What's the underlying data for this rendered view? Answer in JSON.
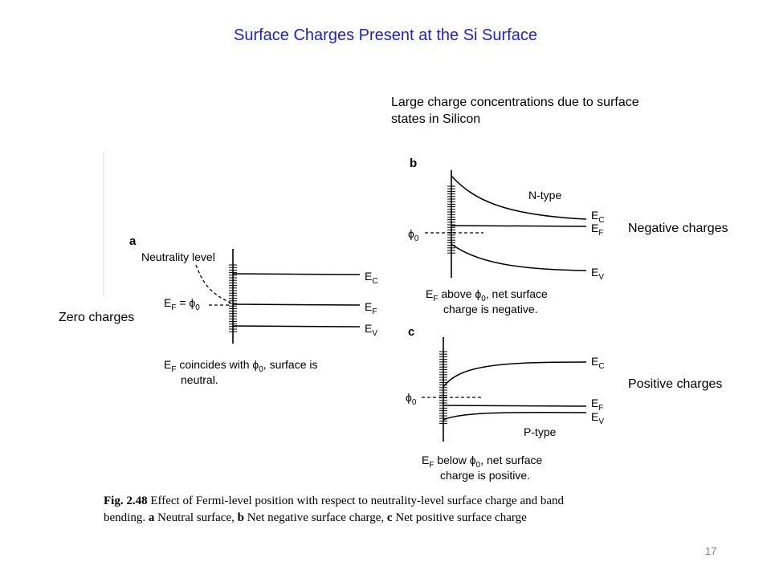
{
  "slide": {
    "title": "Surface Charges Present at the Si Surface",
    "note_top_line1": "Large charge concentrations due to surface",
    "note_top_line2": "states in Silicon",
    "label_zero": "Zero charges",
    "label_negative": "Negative charges",
    "label_positive": "Positive charges",
    "page_number": "17"
  },
  "figure": {
    "panel_a": {
      "letter": "a",
      "neutrality_label": "Neutrality level",
      "ef_symbol": "E",
      "ef_sub": "F",
      "equals_phi": " = ϕ",
      "phi_sub": "0",
      "band_ec": "E",
      "band_ec_sub": "C",
      "band_ef": "E",
      "band_ef_sub": "F",
      "band_ev": "E",
      "band_ev_sub": "V",
      "caption_line1_main": " coincides with ϕ",
      "caption_line1_tail": ", surface is",
      "caption_line2": "neutral."
    },
    "panel_b": {
      "letter": "b",
      "type_label": "N-type",
      "phi": "ϕ",
      "phi_sub": "0",
      "band_ec": "E",
      "band_ec_sub": "C",
      "band_ef": "E",
      "band_ef_sub": "F",
      "band_ev": "E",
      "band_ev_sub": "V",
      "caption_line1_main": " above ϕ",
      "caption_line1_tail": ", net surface",
      "caption_line2": "charge is negative."
    },
    "panel_c": {
      "letter": "c",
      "type_label": "P-type",
      "phi": "ϕ",
      "phi_sub": "0",
      "band_ec": "E",
      "band_ec_sub": "C",
      "band_ef": "E",
      "band_ef_sub": "F",
      "band_ev": "E",
      "band_ev_sub": "V",
      "caption_line1_main": " below ϕ",
      "caption_line1_tail": ", net surface",
      "caption_line2": "charge is positive."
    },
    "caption": {
      "fig_label": "Fig. 2.48",
      "line1": " Effect of Fermi-level position with respect to neutrality-level surface charge and band",
      "line2_start": "bending.",
      "a_letter": " a",
      "a_text": " Neutral surface,",
      "b_letter": " b",
      "b_text": " Net negative surface charge,",
      "c_letter": " c",
      "c_text": " Net positive surface charge"
    }
  }
}
